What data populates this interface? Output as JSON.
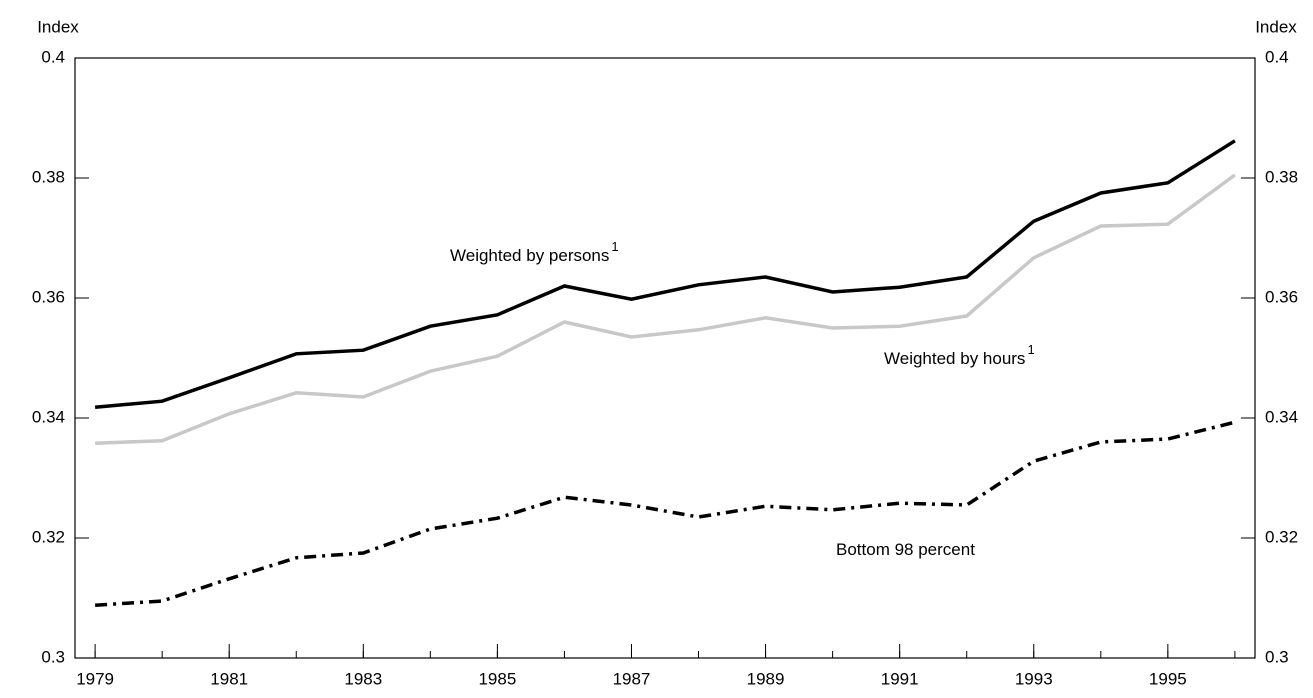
{
  "chart_data": {
    "type": "line",
    "y_label": "Index",
    "y2_label": "Index",
    "x": [
      1979,
      1980,
      1981,
      1982,
      1983,
      1984,
      1985,
      1986,
      1987,
      1988,
      1989,
      1990,
      1991,
      1992,
      1993,
      1994,
      1995,
      1996
    ],
    "xlim": [
      1978.7,
      1996.3
    ],
    "xticks": [
      1979,
      1981,
      1983,
      1985,
      1987,
      1989,
      1991,
      1993,
      1995
    ],
    "ylim": [
      0.3,
      0.4
    ],
    "yticks": [
      0.3,
      0.32,
      0.34,
      0.36,
      0.38,
      0.4
    ],
    "y2lim": [
      0.3,
      0.4
    ],
    "y2ticks": [
      0.3,
      0.32,
      0.34,
      0.36,
      0.38,
      0.4
    ],
    "series": [
      {
        "name": "Weighted by persons",
        "footnote": "1",
        "color": "#000000",
        "style": "solid",
        "values": [
          0.3418,
          0.3428,
          0.3467,
          0.3507,
          0.3513,
          0.3553,
          0.3572,
          0.362,
          0.3598,
          0.3622,
          0.3635,
          0.361,
          0.3618,
          0.3635,
          0.3728,
          0.3775,
          0.3792,
          0.3862
        ]
      },
      {
        "name": "Weighted by hours",
        "footnote": "1",
        "color": "#c8c8c8",
        "style": "solid",
        "values": [
          0.3358,
          0.3362,
          0.3407,
          0.3442,
          0.3435,
          0.3478,
          0.3503,
          0.356,
          0.3535,
          0.3547,
          0.3567,
          0.355,
          0.3553,
          0.357,
          0.3667,
          0.372,
          0.3723,
          0.3805
        ]
      },
      {
        "name": "Bottom 98 percent",
        "color": "#000000",
        "style": "dashdot",
        "values": [
          0.3088,
          0.3095,
          0.3132,
          0.3167,
          0.3175,
          0.3215,
          0.3233,
          0.3268,
          0.3255,
          0.3235,
          0.3253,
          0.3247,
          0.3258,
          0.3255,
          0.3328,
          0.336,
          0.3365,
          0.3393
        ]
      }
    ]
  }
}
